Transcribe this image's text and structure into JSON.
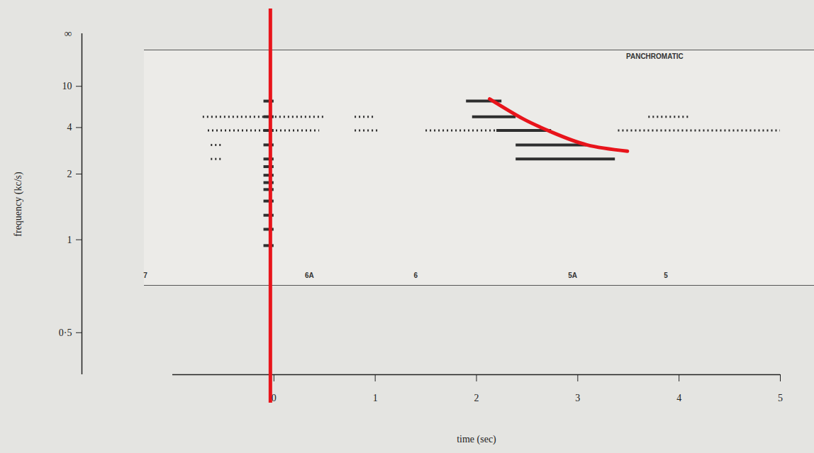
{
  "chart_data": {
    "type": "spectrogram",
    "xlabel": "time (sec)",
    "ylabel": "frequency (kc/s)",
    "xlim": [
      -1,
      5
    ],
    "xticks": [
      0,
      1,
      2,
      3,
      4,
      5
    ],
    "ylim": [
      0.39,
      150
    ],
    "yticks": [
      {
        "value": 0.5,
        "label": "0·5"
      },
      1,
      2,
      4,
      10
    ],
    "y_axis_top_label": "∞",
    "color": "#2e2e2e",
    "segments": [
      {
        "t": [
          -0.1,
          0.0
        ],
        "frequency": 6.85,
        "line_style": "solid"
      },
      {
        "t": [
          -0.1,
          0.0
        ],
        "frequency": 4.9,
        "line_style": "solid"
      },
      {
        "t": [
          -0.1,
          0.0
        ],
        "frequency": 3.8,
        "line_style": "solid"
      },
      {
        "t": [
          -0.1,
          0.0
        ],
        "frequency": 3.0,
        "line_style": "solid"
      },
      {
        "t": [
          -0.1,
          0.0
        ],
        "frequency": 2.44,
        "line_style": "solid"
      },
      {
        "t": [
          -0.1,
          0.0
        ],
        "frequency": 2.2,
        "line_style": "solid"
      },
      {
        "t": [
          -0.1,
          0.0
        ],
        "frequency": 1.97,
        "line_style": "solid"
      },
      {
        "t": [
          -0.1,
          0.0
        ],
        "frequency": 1.8,
        "line_style": "solid"
      },
      {
        "t": [
          -0.1,
          0.0
        ],
        "frequency": 1.66,
        "line_style": "solid"
      },
      {
        "t": [
          -0.1,
          0.0
        ],
        "frequency": 1.46,
        "line_style": "solid"
      },
      {
        "t": [
          -0.1,
          0.0
        ],
        "frequency": 1.26,
        "line_style": "solid"
      },
      {
        "t": [
          -0.1,
          0.0
        ],
        "frequency": 1.1,
        "line_style": "solid"
      },
      {
        "t": [
          -0.1,
          0.0
        ],
        "frequency": 0.95,
        "line_style": "solid"
      },
      {
        "t": [
          -0.7,
          0.5
        ],
        "frequency": 4.9,
        "line_style": "dotted"
      },
      {
        "t": [
          0.8,
          1.0
        ],
        "frequency": 4.9,
        "line_style": "dotted"
      },
      {
        "t": [
          -0.65,
          0.45
        ],
        "frequency": 3.8,
        "line_style": "dotted"
      },
      {
        "t": [
          0.8,
          1.05
        ],
        "frequency": 3.8,
        "line_style": "dotted"
      },
      {
        "t": [
          1.5,
          2.2
        ],
        "frequency": 3.8,
        "line_style": "dotted"
      },
      {
        "t": [
          3.4,
          5.0
        ],
        "frequency": 3.8,
        "line_style": "dotted"
      },
      {
        "t": [
          3.7,
          4.1
        ],
        "frequency": 4.9,
        "line_style": "dotted"
      },
      {
        "t": [
          -0.62,
          -0.5
        ],
        "frequency": 2.44,
        "line_style": "dotted"
      },
      {
        "t": [
          -0.62,
          -0.5
        ],
        "frequency": 3.0,
        "line_style": "dotted"
      },
      {
        "t": [
          1.9,
          2.25
        ],
        "frequency": 6.85,
        "line_style": "solid"
      },
      {
        "t": [
          1.96,
          2.39
        ],
        "frequency": 4.9,
        "line_style": "solid"
      },
      {
        "t": [
          2.2,
          2.74
        ],
        "frequency": 3.8,
        "line_style": "solid"
      },
      {
        "t": [
          2.39,
          3.09
        ],
        "frequency": 3.0,
        "line_style": "solid"
      },
      {
        "t": [
          2.39,
          3.37
        ],
        "frequency": 2.44,
        "line_style": "solid"
      }
    ],
    "annotations": [
      {
        "type": "vline",
        "x": -0.035,
        "color": "#e8141b"
      },
      {
        "type": "line",
        "x": [
          2.13,
          2.46,
          2.74,
          3.09,
          3.49
        ],
        "y": [
          7.2,
          4.7,
          3.7,
          3.0,
          2.73
        ],
        "color": "#e8141b"
      }
    ],
    "film_labels": [
      {
        "text": "PANCHROMATIC",
        "x": 3.76,
        "y": 29.5
      },
      {
        "text": "7",
        "x": -1.27,
        "y": 0.744
      },
      {
        "text": "6A",
        "x": 0.35,
        "y": 0.744
      },
      {
        "text": "6",
        "x": 1.4,
        "y": 0.744
      },
      {
        "text": "5A",
        "x": 2.95,
        "y": 0.744
      },
      {
        "text": "5",
        "x": 3.87,
        "y": 0.744
      }
    ]
  }
}
